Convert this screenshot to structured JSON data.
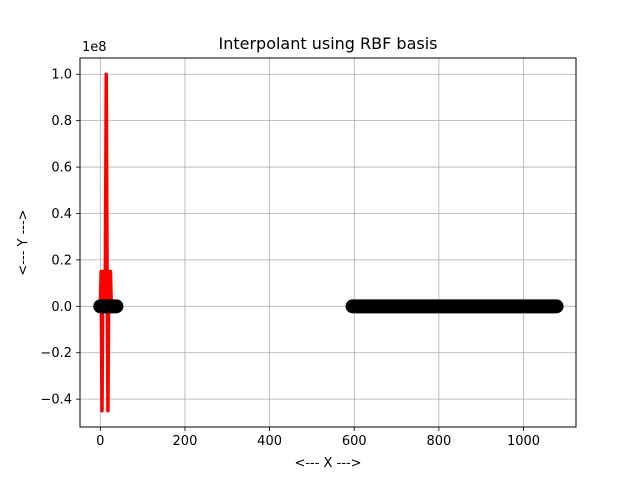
{
  "chart_data": {
    "type": "line",
    "title": "Interpolant using RBF basis",
    "xlabel": "<--- X --->",
    "ylabel": "<--- Y --->",
    "y_offset_text": "1e8",
    "xlim": [
      -48,
      1124
    ],
    "ylim": [
      -0.52,
      1.07
    ],
    "y_scale_factor": 100000000,
    "grid": true,
    "x_ticks": [
      0,
      200,
      400,
      600,
      800,
      1000
    ],
    "x_tick_labels": [
      "0",
      "200",
      "400",
      "600",
      "800",
      "1000"
    ],
    "y_ticks": [
      -0.4,
      -0.2,
      0.0,
      0.2,
      0.4,
      0.6,
      0.8,
      1.0
    ],
    "y_tick_labels": [
      "−0.4",
      "−0.2",
      "0.0",
      "0.2",
      "0.4",
      "0.6",
      "0.8",
      "1.0"
    ],
    "series": [
      {
        "color": "#ff0000",
        "style": "line",
        "x": [
          0,
          2,
          4,
          6,
          8,
          10,
          12,
          14,
          16,
          18,
          20,
          22,
          24,
          26,
          28,
          30,
          32
        ],
        "y": [
          0,
          0.15,
          -0.45,
          0.15,
          0,
          0.15,
          0.15,
          1.0,
          0.15,
          -0.45,
          0.15,
          0.15,
          0.15,
          0,
          0,
          0,
          0
        ]
      },
      {
        "color": "#000000",
        "style": "markers",
        "x_start_a": 0,
        "x_end_a": 38,
        "x_start_b": 596,
        "x_end_b": 1078,
        "y": 0
      }
    ]
  }
}
